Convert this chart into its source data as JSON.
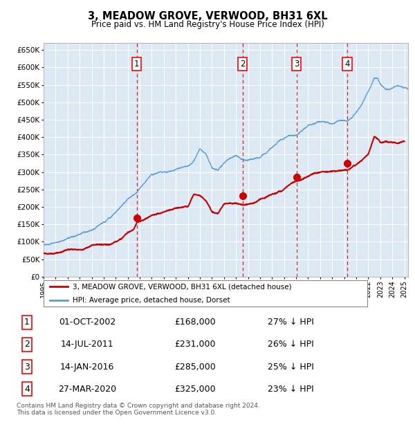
{
  "title": "3, MEADOW GROVE, VERWOOD, BH31 6XL",
  "subtitle": "Price paid vs. HM Land Registry's House Price Index (HPI)",
  "hpi_color": "#5b9bd5",
  "price_color": "#cc0000",
  "plot_bg": "#dce9f5",
  "legend_label_price": "3, MEADOW GROVE, VERWOOD, BH31 6XL (detached house)",
  "legend_label_hpi": "HPI: Average price, detached house, Dorset",
  "footer": "Contains HM Land Registry data © Crown copyright and database right 2024.\nThis data is licensed under the Open Government Licence v3.0.",
  "sales": [
    {
      "num": 1,
      "date": "01-OCT-2002",
      "price": 168000,
      "pct": "27% ↓ HPI",
      "x_year": 2002.75
    },
    {
      "num": 2,
      "date": "14-JUL-2011",
      "price": 231000,
      "pct": "26% ↓ HPI",
      "x_year": 2011.54
    },
    {
      "num": 3,
      "date": "14-JAN-2016",
      "price": 285000,
      "pct": "25% ↓ HPI",
      "x_year": 2016.04
    },
    {
      "num": 4,
      "date": "27-MAR-2020",
      "price": 325000,
      "pct": "23% ↓ HPI",
      "x_year": 2020.24
    }
  ],
  "ylim": [
    0,
    670000
  ],
  "yticks": [
    0,
    50000,
    100000,
    150000,
    200000,
    250000,
    300000,
    350000,
    400000,
    450000,
    500000,
    550000,
    600000,
    650000
  ],
  "xmin": 1995.0,
  "xmax": 2025.3,
  "hpi_keypoints": [
    [
      1995.0,
      93000
    ],
    [
      1996.0,
      96000
    ],
    [
      1997.0,
      103000
    ],
    [
      1998.0,
      113000
    ],
    [
      1999.0,
      126000
    ],
    [
      2000.0,
      145000
    ],
    [
      2001.0,
      171000
    ],
    [
      2002.0,
      210000
    ],
    [
      2002.75,
      230000
    ],
    [
      2003.0,
      245000
    ],
    [
      2004.0,
      278000
    ],
    [
      2005.0,
      285000
    ],
    [
      2006.0,
      292000
    ],
    [
      2007.0,
      305000
    ],
    [
      2007.5,
      315000
    ],
    [
      2008.0,
      348000
    ],
    [
      2008.5,
      330000
    ],
    [
      2009.0,
      290000
    ],
    [
      2009.5,
      278000
    ],
    [
      2010.0,
      295000
    ],
    [
      2010.5,
      310000
    ],
    [
      2011.0,
      320000
    ],
    [
      2011.54,
      314000
    ],
    [
      2012.0,
      310000
    ],
    [
      2012.5,
      315000
    ],
    [
      2013.0,
      318000
    ],
    [
      2013.5,
      325000
    ],
    [
      2014.0,
      340000
    ],
    [
      2014.5,
      358000
    ],
    [
      2015.0,
      370000
    ],
    [
      2015.5,
      382000
    ],
    [
      2016.0,
      382000
    ],
    [
      2016.04,
      382000
    ],
    [
      2016.5,
      395000
    ],
    [
      2017.0,
      408000
    ],
    [
      2017.5,
      415000
    ],
    [
      2018.0,
      418000
    ],
    [
      2018.5,
      420000
    ],
    [
      2019.0,
      418000
    ],
    [
      2019.5,
      422000
    ],
    [
      2020.0,
      425000
    ],
    [
      2020.24,
      422000
    ],
    [
      2020.5,
      432000
    ],
    [
      2021.0,
      450000
    ],
    [
      2021.5,
      475000
    ],
    [
      2022.0,
      505000
    ],
    [
      2022.5,
      548000
    ],
    [
      2022.8,
      545000
    ],
    [
      2023.0,
      530000
    ],
    [
      2023.5,
      515000
    ],
    [
      2024.0,
      520000
    ],
    [
      2024.5,
      530000
    ],
    [
      2025.0,
      525000
    ],
    [
      2025.3,
      520000
    ]
  ],
  "price_keypoints": [
    [
      1995.0,
      68000
    ],
    [
      1995.5,
      68000
    ],
    [
      1996.0,
      70000
    ],
    [
      1997.0,
      77000
    ],
    [
      1998.0,
      82000
    ],
    [
      1999.0,
      88000
    ],
    [
      2000.0,
      95000
    ],
    [
      2000.5,
      98000
    ],
    [
      2001.0,
      108000
    ],
    [
      2001.5,
      118000
    ],
    [
      2002.0,
      135000
    ],
    [
      2002.5,
      148000
    ],
    [
      2002.75,
      168000
    ],
    [
      2003.0,
      172000
    ],
    [
      2003.5,
      178000
    ],
    [
      2004.0,
      188000
    ],
    [
      2004.5,
      195000
    ],
    [
      2005.0,
      200000
    ],
    [
      2005.5,
      205000
    ],
    [
      2006.0,
      210000
    ],
    [
      2006.5,
      212000
    ],
    [
      2007.0,
      218000
    ],
    [
      2007.5,
      252000
    ],
    [
      2008.0,
      248000
    ],
    [
      2008.5,
      230000
    ],
    [
      2009.0,
      200000
    ],
    [
      2009.5,
      195000
    ],
    [
      2010.0,
      225000
    ],
    [
      2010.5,
      232000
    ],
    [
      2011.0,
      235000
    ],
    [
      2011.54,
      231000
    ],
    [
      2012.0,
      232000
    ],
    [
      2012.5,
      234000
    ],
    [
      2013.0,
      238000
    ],
    [
      2013.5,
      245000
    ],
    [
      2014.0,
      252000
    ],
    [
      2014.5,
      260000
    ],
    [
      2015.0,
      268000
    ],
    [
      2015.5,
      278000
    ],
    [
      2016.0,
      285000
    ],
    [
      2016.04,
      285000
    ],
    [
      2016.5,
      290000
    ],
    [
      2017.0,
      300000
    ],
    [
      2017.5,
      310000
    ],
    [
      2018.0,
      315000
    ],
    [
      2018.5,
      318000
    ],
    [
      2019.0,
      320000
    ],
    [
      2019.5,
      322000
    ],
    [
      2020.0,
      325000
    ],
    [
      2020.24,
      325000
    ],
    [
      2020.5,
      330000
    ],
    [
      2021.0,
      340000
    ],
    [
      2021.5,
      352000
    ],
    [
      2022.0,
      365000
    ],
    [
      2022.5,
      415000
    ],
    [
      2022.8,
      405000
    ],
    [
      2023.0,
      395000
    ],
    [
      2023.5,
      400000
    ],
    [
      2024.0,
      398000
    ],
    [
      2024.5,
      395000
    ],
    [
      2025.0,
      400000
    ]
  ]
}
